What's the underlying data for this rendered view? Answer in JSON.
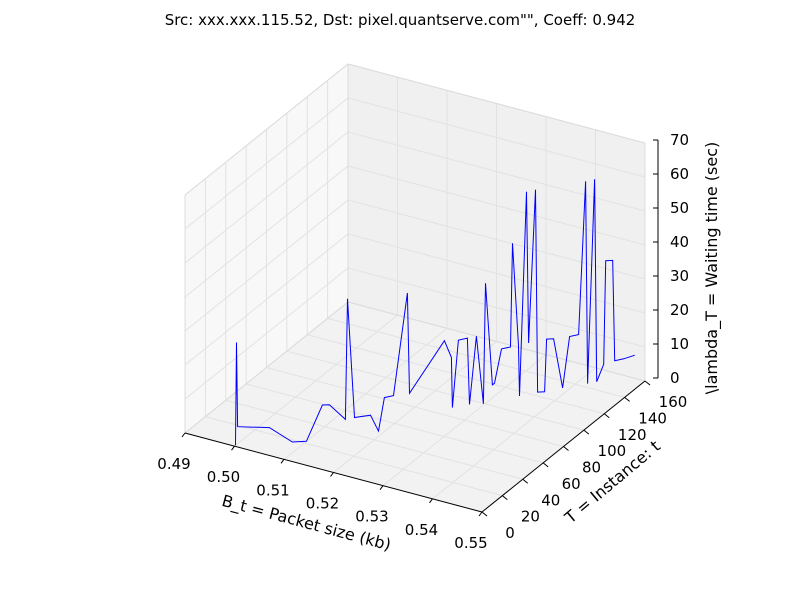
{
  "chart_data": {
    "type": "line3d",
    "title": "Src: xxx.xxx.115.52, Dst: pixel.quantserve.com\"\", Coeff: 0.942",
    "xlabel": "B_t = Packet size (kb)",
    "ylabel": "T = Instance: t",
    "zlabel": "\\lambda_T = Waiting time (sec)",
    "xlim": [
      0.49,
      0.55
    ],
    "ylim": [
      0,
      160
    ],
    "zlim": [
      0,
      70
    ],
    "x_ticks": [
      "0.49",
      "0.50",
      "0.51",
      "0.52",
      "0.53",
      "0.54",
      "0.55"
    ],
    "y_ticks": [
      "0",
      "20",
      "40",
      "60",
      "80",
      "100",
      "120",
      "140",
      "160"
    ],
    "z_ticks": [
      "0",
      "10",
      "20",
      "30",
      "40",
      "50",
      "60",
      "70"
    ],
    "grid": true,
    "series": [
      {
        "color": "#0000ff",
        "points": [
          [
            0.5,
            1,
            0
          ],
          [
            0.5,
            2,
            30
          ],
          [
            0.5,
            3,
            5
          ],
          [
            0.505,
            10,
            5
          ],
          [
            0.508,
            18,
            0
          ],
          [
            0.509,
            20,
            0
          ],
          [
            0.51,
            22,
            0
          ],
          [
            0.512,
            28,
            10
          ],
          [
            0.513,
            30,
            10
          ],
          [
            0.515,
            36,
            5
          ],
          [
            0.515,
            38,
            40
          ],
          [
            0.516,
            40,
            5
          ],
          [
            0.518,
            46,
            5
          ],
          [
            0.519,
            49,
            0
          ],
          [
            0.52,
            50,
            10
          ],
          [
            0.521,
            54,
            10
          ],
          [
            0.523,
            58,
            40
          ],
          [
            0.523,
            60,
            10
          ],
          [
            0.528,
            70,
            25
          ],
          [
            0.529,
            72,
            20
          ],
          [
            0.529,
            73,
            5
          ],
          [
            0.53,
            74,
            25
          ],
          [
            0.531,
            78,
            25
          ],
          [
            0.531,
            80,
            5
          ],
          [
            0.532,
            82,
            25
          ],
          [
            0.533,
            84,
            5
          ],
          [
            0.533,
            86,
            40
          ],
          [
            0.534,
            88,
            10
          ],
          [
            0.534,
            90,
            10
          ],
          [
            0.535,
            92,
            20
          ],
          [
            0.536,
            96,
            20
          ],
          [
            0.536,
            98,
            50
          ],
          [
            0.537,
            99,
            20
          ],
          [
            0.537,
            100,
            5
          ],
          [
            0.538,
            102,
            65
          ],
          [
            0.538,
            104,
            20
          ],
          [
            0.539,
            106,
            65
          ],
          [
            0.539,
            108,
            5
          ],
          [
            0.54,
            110,
            5
          ],
          [
            0.54,
            112,
            20
          ],
          [
            0.541,
            114,
            20
          ],
          [
            0.542,
            118,
            5
          ],
          [
            0.543,
            120,
            20
          ],
          [
            0.544,
            124,
            20
          ],
          [
            0.545,
            126,
            65
          ],
          [
            0.545,
            128,
            5
          ],
          [
            0.546,
            130,
            65
          ],
          [
            0.546,
            132,
            5
          ],
          [
            0.547,
            134,
            10
          ],
          [
            0.547,
            136,
            40
          ],
          [
            0.548,
            138,
            40
          ],
          [
            0.548,
            140,
            10
          ],
          [
            0.549,
            144,
            10
          ],
          [
            0.55,
            150,
            10
          ]
        ]
      }
    ]
  }
}
